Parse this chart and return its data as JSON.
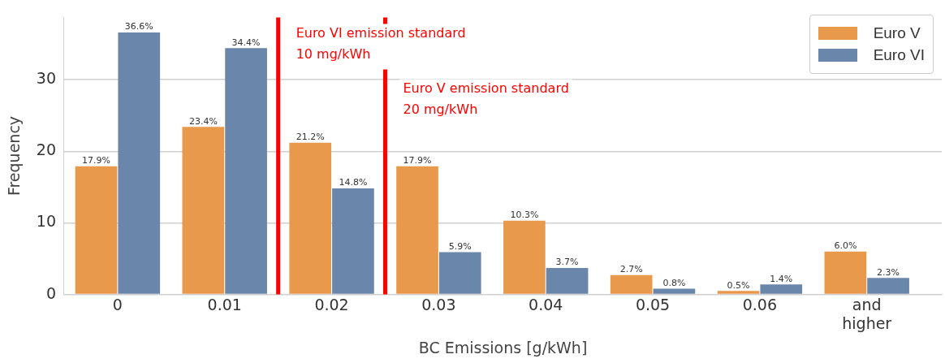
{
  "chart_data": {
    "type": "bar",
    "xlabel": "BC Emissions [g/kWh]",
    "ylabel": "Frequency",
    "x": [
      0,
      0.01,
      0.02,
      0.03,
      0.04,
      0.05,
      0.06,
      0.07
    ],
    "xlim": [
      -0.005,
      0.077
    ],
    "xticks": [
      0,
      0.01,
      0.02,
      0.03,
      0.04,
      0.05,
      0.06,
      {
        "value": 0.07,
        "label": "and higher"
      }
    ],
    "ylim": [
      0,
      38.7
    ],
    "yticks": [
      0,
      10,
      20,
      30
    ],
    "series": [
      {
        "name": "Euro V",
        "color": "#e9994b",
        "values": [
          17.9,
          23.4,
          21.2,
          17.9,
          10.3,
          2.7,
          0.5,
          6.0
        ],
        "value_labels": [
          "17.9%",
          "23.4%",
          "21.2%",
          "17.9%",
          "10.3%",
          "2.7%",
          "0.5%",
          "6.0%"
        ]
      },
      {
        "name": "Euro VI",
        "color": "#6b86ab",
        "values": [
          36.6,
          34.4,
          14.8,
          5.9,
          3.7,
          0.8,
          1.4,
          2.3
        ],
        "value_labels": [
          "36.6%",
          "34.4%",
          "14.8%",
          "5.9%",
          "3.7%",
          "0.8%",
          "1.4%",
          "2.3%"
        ]
      }
    ],
    "ref_lines": [
      {
        "axis": "x",
        "value": 0.015,
        "label": "Euro VI emission standard\n10 mg/kWh",
        "color": "#ff0000"
      },
      {
        "axis": "x",
        "value": 0.025,
        "label": "Euro V emission standard\n20 mg/kWh",
        "color": "#ff0000"
      }
    ],
    "grid": "y",
    "legend": "top right"
  }
}
